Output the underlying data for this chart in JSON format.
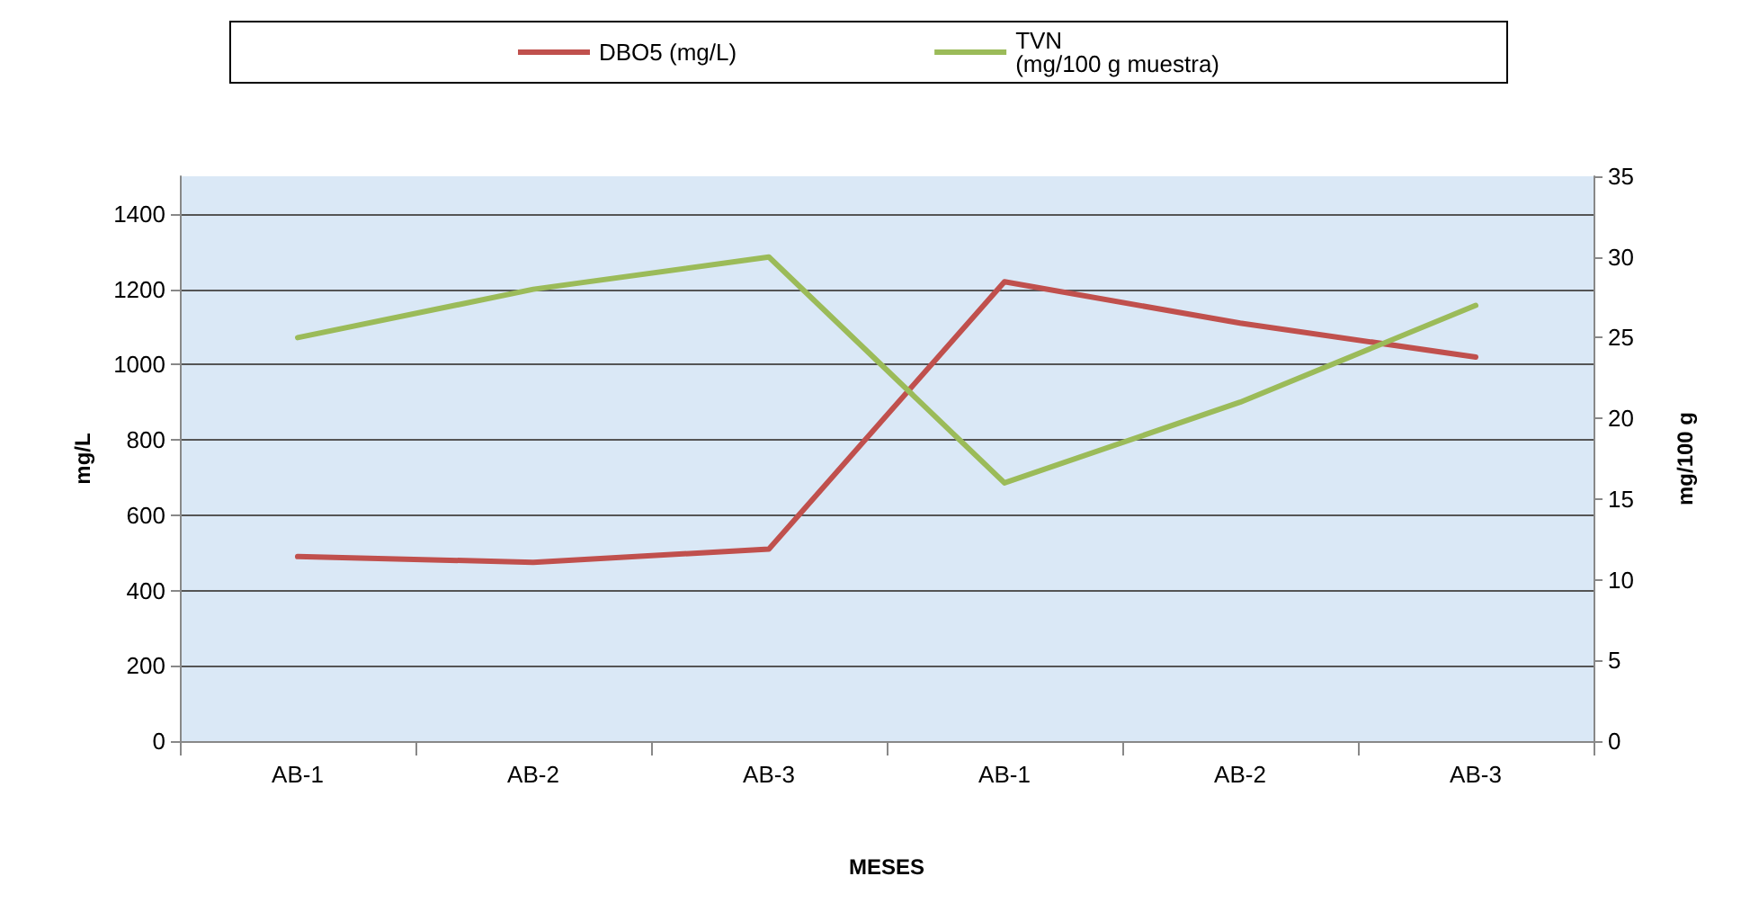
{
  "chart_data": {
    "type": "line",
    "xlabel": "MESES",
    "ylabel": "mg/L",
    "y2label": "mg/100 g",
    "categories": [
      "AB-1",
      "AB-2",
      "AB-3",
      "AB-1",
      "AB-2",
      "AB-3"
    ],
    "series": [
      {
        "name": "DBO5 (mg/L)",
        "color": "#c0504d",
        "values": [
          490,
          475,
          510,
          1220,
          1110,
          1020
        ]
      },
      {
        "name": "TVN\n(mg/100 g muestra)",
        "color": "#9bbb59",
        "values": [
          25,
          28,
          30,
          16,
          21,
          27
        ],
        "axis": "y2"
      }
    ],
    "ylim": [
      0,
      1500
    ],
    "yticks": [
      0,
      200,
      400,
      600,
      800,
      1000,
      1200,
      1400
    ],
    "y2lim": [
      0,
      35
    ],
    "y2ticks": [
      0,
      5,
      10,
      15,
      20,
      25,
      30,
      35
    ],
    "grid": "y",
    "legend": "top",
    "marker": "none",
    "line_style": "solid"
  }
}
